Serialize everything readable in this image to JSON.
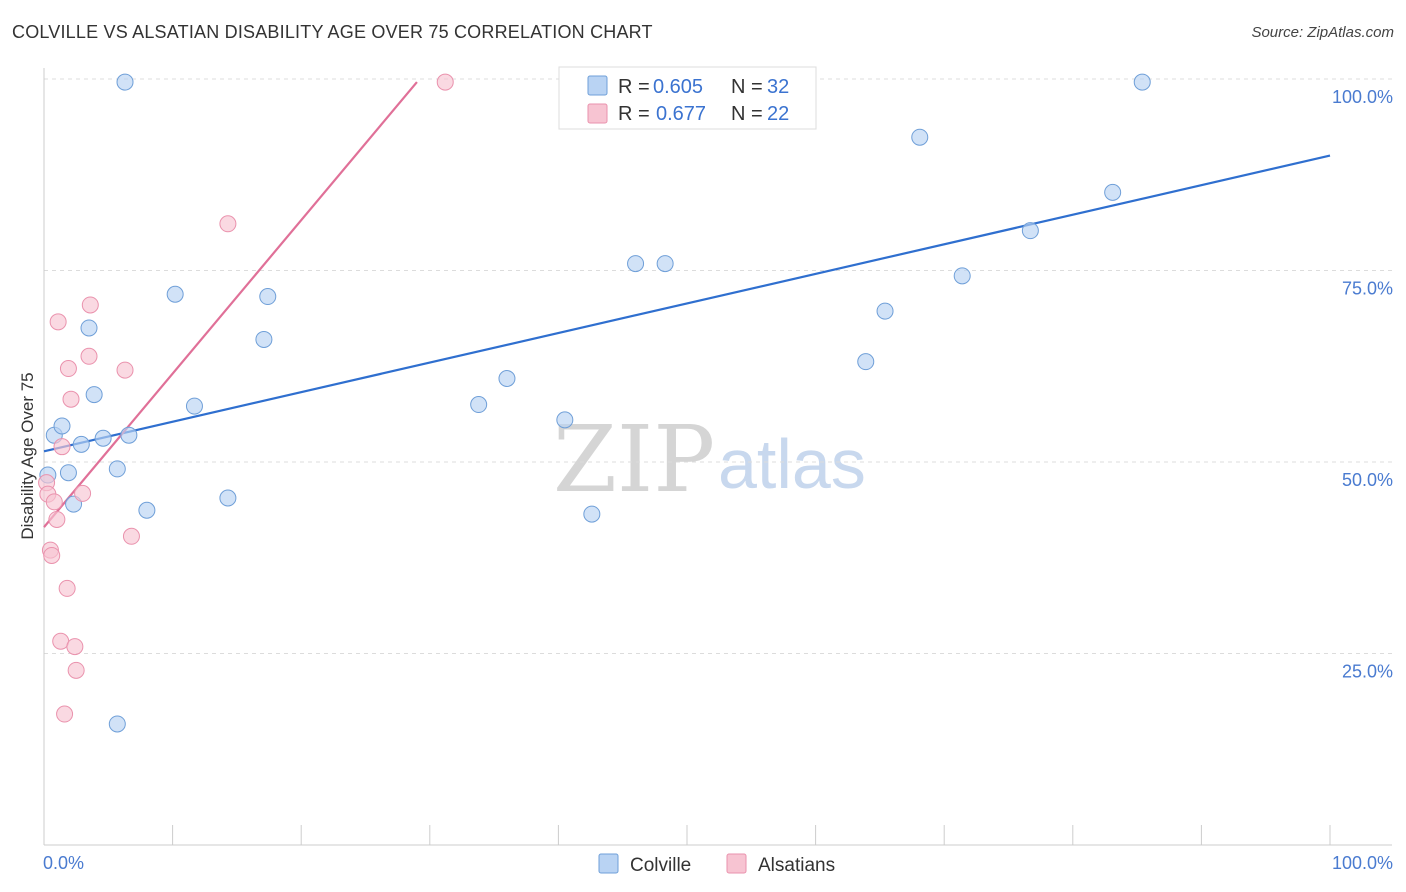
{
  "title": "COLVILLE VS ALSATIAN DISABILITY AGE OVER 75 CORRELATION CHART",
  "source": "Source: ZipAtlas.com",
  "watermark": {
    "zip": "ZIP",
    "atlas": "atlas"
  },
  "chart_data": {
    "type": "scatter",
    "ylabel": "Disability Age Over 75",
    "xlim": [
      0,
      100
    ],
    "ylim": [
      0,
      100
    ],
    "x_tick_labels": {
      "left": "0.0%",
      "right": "100.0%"
    },
    "y_ticks": [
      {
        "value": 100,
        "label": "100.0%"
      },
      {
        "value": 75,
        "label": "75.0%"
      },
      {
        "value": 50,
        "label": "50.0%"
      },
      {
        "value": 25,
        "label": "25.0%"
      }
    ],
    "colors": {
      "colville_fill": "#b9d3f3",
      "colville_stroke": "#6f9fd8",
      "colville_line": "#2f6fcf",
      "alsatians_fill": "#f7c4d2",
      "alsatians_stroke": "#ea92ad",
      "alsatians_line": "#e07098"
    },
    "legend": {
      "r_label": "R =",
      "n_label": "N =",
      "entries": [
        {
          "r": "0.605",
          "n": "32"
        },
        {
          "r": "0.677",
          "n": "22"
        }
      ]
    },
    "series": [
      {
        "name": "Colville",
        "points": [
          [
            0.3,
            48.3
          ],
          [
            0.8,
            53.5
          ],
          [
            1.4,
            54.7
          ],
          [
            1.9,
            48.6
          ],
          [
            2.3,
            44.5
          ],
          [
            2.9,
            52.3
          ],
          [
            3.5,
            67.5
          ],
          [
            3.9,
            58.8
          ],
          [
            4.6,
            53.1
          ],
          [
            5.7,
            15.8
          ],
          [
            5.7,
            49.1
          ],
          [
            6.3,
            99.6
          ],
          [
            6.6,
            53.5
          ],
          [
            8.0,
            43.7
          ],
          [
            10.2,
            71.9
          ],
          [
            11.7,
            57.3
          ],
          [
            14.3,
            45.3
          ],
          [
            17.1,
            66.0
          ],
          [
            17.4,
            71.6
          ],
          [
            33.8,
            57.5
          ],
          [
            36.0,
            60.9
          ],
          [
            40.5,
            55.5
          ],
          [
            42.6,
            43.2
          ],
          [
            46.0,
            75.9
          ],
          [
            48.3,
            75.9
          ],
          [
            63.9,
            63.1
          ],
          [
            65.4,
            69.7
          ],
          [
            68.1,
            92.4
          ],
          [
            71.4,
            74.3
          ],
          [
            76.7,
            80.2
          ],
          [
            83.1,
            85.2
          ],
          [
            85.4,
            99.6
          ]
        ],
        "trend": [
          [
            0,
            51.4
          ],
          [
            100,
            90.0
          ]
        ]
      },
      {
        "name": "Alsatians",
        "points": [
          [
            0.2,
            47.3
          ],
          [
            0.3,
            45.8
          ],
          [
            0.5,
            38.5
          ],
          [
            0.6,
            37.8
          ],
          [
            0.8,
            44.8
          ],
          [
            1.0,
            42.5
          ],
          [
            1.1,
            68.3
          ],
          [
            1.3,
            26.6
          ],
          [
            1.4,
            52.0
          ],
          [
            1.6,
            17.1
          ],
          [
            1.8,
            33.5
          ],
          [
            1.9,
            62.2
          ],
          [
            2.1,
            58.2
          ],
          [
            2.4,
            25.9
          ],
          [
            2.5,
            22.8
          ],
          [
            3.0,
            45.9
          ],
          [
            3.5,
            63.8
          ],
          [
            3.6,
            70.5
          ],
          [
            6.3,
            62.0
          ],
          [
            6.8,
            40.3
          ],
          [
            14.3,
            81.1
          ],
          [
            31.2,
            99.6
          ]
        ],
        "trend": [
          [
            0,
            41.5
          ],
          [
            29,
            99.6
          ]
        ]
      }
    ]
  }
}
